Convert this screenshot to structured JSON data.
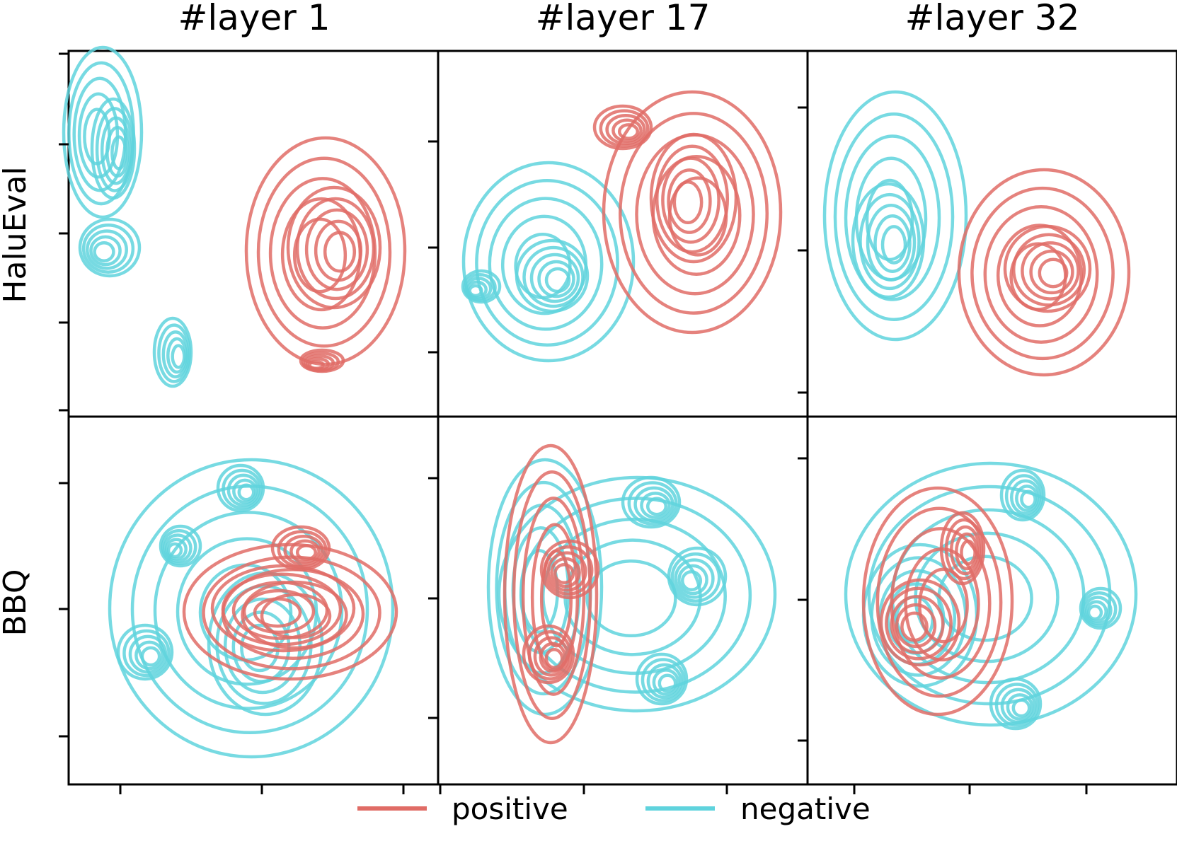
{
  "chart_data": {
    "type": "contour",
    "layout": "2x3 facet grid",
    "columns": [
      "#layer 1",
      "#layer 17",
      "#layer 32"
    ],
    "rows": [
      "HaluEval",
      "BBQ"
    ],
    "legend": {
      "placement": "bottom-center",
      "entries": [
        {
          "name": "positive",
          "color": "#e06c66"
        },
        {
          "name": "negative",
          "color": "#5fd3dd"
        }
      ]
    },
    "tick_labels_visible": false,
    "grid": false,
    "series": [
      {
        "name": "positive",
        "color": "#e06c66"
      },
      {
        "name": "negative",
        "color": "#5fd3dd"
      }
    ],
    "panels": [
      {
        "row": "HaluEval",
        "col": "#layer 1",
        "separation": "separated"
      },
      {
        "row": "HaluEval",
        "col": "#layer 17",
        "separation": "separated"
      },
      {
        "row": "HaluEval",
        "col": "#layer 32",
        "separation": "slight overlap"
      },
      {
        "row": "BBQ",
        "col": "#layer 1",
        "separation": "overlapping"
      },
      {
        "row": "BBQ",
        "col": "#layer 17",
        "separation": "overlapping"
      },
      {
        "row": "BBQ",
        "col": "#layer 32",
        "separation": "overlapping"
      }
    ]
  }
}
